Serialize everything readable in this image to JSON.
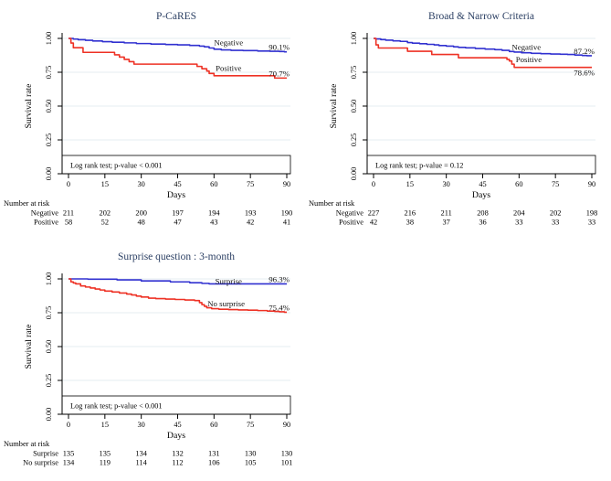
{
  "figure": {
    "background": "#ffffff",
    "axis_color": "#000000",
    "grid_color": "#e6edf2",
    "text_color": "#000000"
  },
  "chart_data": [
    {
      "type": "line",
      "subtype": "kaplan-meier-step",
      "title": "P-CaRES",
      "title_color": "#2b3f63",
      "xlabel": "Days",
      "ylabel": "Survival rate",
      "xlim": [
        0,
        90
      ],
      "ylim": [
        0,
        1
      ],
      "xticks": [
        0,
        15,
        30,
        45,
        60,
        75,
        90
      ],
      "ytick_labels": [
        "0.00",
        "0.25",
        "0.50",
        "0.75",
        "1.00"
      ],
      "ytick_values": [
        0,
        0.25,
        0.5,
        0.75,
        1.0
      ],
      "grid": "horizontal",
      "annotation": "Log rank test; p-value < 0.001",
      "series": [
        {
          "name": "Negative",
          "color": "#3030d0",
          "steps": [
            [
              0,
              1.0
            ],
            [
              2,
              0.995
            ],
            [
              4,
              0.99
            ],
            [
              7,
              0.986
            ],
            [
              10,
              0.981
            ],
            [
              14,
              0.976
            ],
            [
              18,
              0.972
            ],
            [
              23,
              0.967
            ],
            [
              28,
              0.962
            ],
            [
              34,
              0.958
            ],
            [
              40,
              0.955
            ],
            [
              45,
              0.952
            ],
            [
              50,
              0.948
            ],
            [
              54,
              0.943
            ],
            [
              56,
              0.938
            ],
            [
              58,
              0.929
            ],
            [
              60,
              0.92
            ],
            [
              63,
              0.915
            ],
            [
              67,
              0.912
            ],
            [
              72,
              0.91
            ],
            [
              78,
              0.907
            ],
            [
              83,
              0.905
            ],
            [
              87,
              0.903
            ],
            [
              89,
              0.901
            ],
            [
              90,
              0.901
            ]
          ],
          "label_pos": [
            66,
            0.97
          ],
          "end_label": "90.1%",
          "end_label_side": "above"
        },
        {
          "name": "Positive",
          "color": "#ee3124",
          "steps": [
            [
              0,
              1.0
            ],
            [
              1,
              0.966
            ],
            [
              2,
              0.931
            ],
            [
              6,
              0.897
            ],
            [
              19,
              0.879
            ],
            [
              21,
              0.862
            ],
            [
              23,
              0.845
            ],
            [
              25,
              0.828
            ],
            [
              27,
              0.81
            ],
            [
              53,
              0.793
            ],
            [
              55,
              0.776
            ],
            [
              57,
              0.759
            ],
            [
              58,
              0.741
            ],
            [
              60,
              0.724
            ],
            [
              85,
              0.707
            ],
            [
              90,
              0.707
            ]
          ],
          "label_pos": [
            66,
            0.782
          ],
          "end_label": "70.7%",
          "end_label_side": "above"
        }
      ],
      "risk_table": {
        "header": "Number at risk",
        "rows": [
          {
            "label": "Negative",
            "values": [
              211,
              202,
              200,
              197,
              194,
              193,
              190
            ]
          },
          {
            "label": "Positive",
            "values": [
              58,
              52,
              48,
              47,
              43,
              42,
              41
            ]
          }
        ]
      }
    },
    {
      "type": "line",
      "subtype": "kaplan-meier-step",
      "title": "Broad & Narrow Criteria",
      "title_color": "#2b3f63",
      "xlabel": "Days",
      "ylabel": "Survival rate",
      "xlim": [
        0,
        90
      ],
      "ylim": [
        0,
        1
      ],
      "xticks": [
        0,
        15,
        30,
        45,
        60,
        75,
        90
      ],
      "ytick_labels": [
        "0.00",
        "0.25",
        "0.50",
        "0.75",
        "1.00"
      ],
      "ytick_values": [
        0,
        0.25,
        0.5,
        0.75,
        1.0
      ],
      "grid": "horizontal",
      "annotation": "Log rank test; p-value = 0.12",
      "series": [
        {
          "name": "Negative",
          "color": "#3030d0",
          "steps": [
            [
              0,
              1.0
            ],
            [
              1,
              0.996
            ],
            [
              3,
              0.991
            ],
            [
              5,
              0.987
            ],
            [
              8,
              0.982
            ],
            [
              11,
              0.978
            ],
            [
              14,
              0.969
            ],
            [
              16,
              0.965
            ],
            [
              19,
              0.961
            ],
            [
              22,
              0.956
            ],
            [
              25,
              0.952
            ],
            [
              27,
              0.947
            ],
            [
              30,
              0.943
            ],
            [
              33,
              0.938
            ],
            [
              35,
              0.934
            ],
            [
              38,
              0.93
            ],
            [
              42,
              0.925
            ],
            [
              46,
              0.921
            ],
            [
              50,
              0.917
            ],
            [
              53,
              0.912
            ],
            [
              56,
              0.903
            ],
            [
              58,
              0.899
            ],
            [
              61,
              0.894
            ],
            [
              65,
              0.89
            ],
            [
              69,
              0.887
            ],
            [
              73,
              0.885
            ],
            [
              77,
              0.883
            ],
            [
              80,
              0.881
            ],
            [
              83,
              0.877
            ],
            [
              86,
              0.874
            ],
            [
              88,
              0.872
            ],
            [
              90,
              0.872
            ]
          ],
          "label_pos": [
            63,
            0.935
          ],
          "end_label": "87.2%",
          "end_label_side": "above"
        },
        {
          "name": "Positive",
          "color": "#ee3124",
          "steps": [
            [
              0,
              1.0
            ],
            [
              1,
              0.952
            ],
            [
              2,
              0.929
            ],
            [
              14,
              0.905
            ],
            [
              24,
              0.881
            ],
            [
              35,
              0.857
            ],
            [
              55,
              0.845
            ],
            [
              56,
              0.833
            ],
            [
              57,
              0.81
            ],
            [
              58,
              0.786
            ],
            [
              90,
              0.786
            ]
          ],
          "label_pos": [
            64,
            0.843
          ],
          "end_label": "78.6%",
          "end_label_side": "below"
        }
      ],
      "risk_table": {
        "header": "Number at risk",
        "rows": [
          {
            "label": "Negative",
            "values": [
              227,
              216,
              211,
              208,
              204,
              202,
              198
            ]
          },
          {
            "label": "Positive",
            "values": [
              42,
              38,
              37,
              36,
              33,
              33,
              33
            ]
          }
        ]
      }
    },
    {
      "type": "line",
      "subtype": "kaplan-meier-step",
      "title": "Surprise question : 3-month",
      "title_color": "#2b3f63",
      "xlabel": "Days",
      "ylabel": "Survival rate",
      "xlim": [
        0,
        90
      ],
      "ylim": [
        0,
        1
      ],
      "xticks": [
        0,
        15,
        30,
        45,
        60,
        75,
        90
      ],
      "ytick_labels": [
        "0.00",
        "0.25",
        "0.50",
        "0.75",
        "1.00"
      ],
      "ytick_values": [
        0,
        0.25,
        0.5,
        0.75,
        1.0
      ],
      "grid": "horizontal",
      "annotation": "Log rank test; p-value < 0.001",
      "series": [
        {
          "name": "Surprise",
          "color": "#3030d0",
          "steps": [
            [
              0,
              1.0
            ],
            [
              8,
              0.998
            ],
            [
              20,
              0.993
            ],
            [
              30,
              0.985
            ],
            [
              42,
              0.978
            ],
            [
              50,
              0.972
            ],
            [
              55,
              0.967
            ],
            [
              58,
              0.963
            ],
            [
              90,
              0.963
            ]
          ],
          "label_pos": [
            66,
            0.984
          ],
          "end_label": "96.3%",
          "end_label_side": "above"
        },
        {
          "name": "No surprise",
          "color": "#ee3124",
          "steps": [
            [
              0,
              1.0
            ],
            [
              1,
              0.978
            ],
            [
              2,
              0.97
            ],
            [
              3,
              0.963
            ],
            [
              5,
              0.948
            ],
            [
              7,
              0.94
            ],
            [
              9,
              0.933
            ],
            [
              11,
              0.925
            ],
            [
              13,
              0.918
            ],
            [
              15,
              0.91
            ],
            [
              18,
              0.903
            ],
            [
              21,
              0.896
            ],
            [
              24,
              0.888
            ],
            [
              26,
              0.881
            ],
            [
              28,
              0.873
            ],
            [
              30,
              0.866
            ],
            [
              33,
              0.858
            ],
            [
              36,
              0.854
            ],
            [
              40,
              0.851
            ],
            [
              44,
              0.848
            ],
            [
              48,
              0.844
            ],
            [
              52,
              0.84
            ],
            [
              54,
              0.825
            ],
            [
              55,
              0.81
            ],
            [
              56,
              0.798
            ],
            [
              57,
              0.787
            ],
            [
              59,
              0.78
            ],
            [
              62,
              0.776
            ],
            [
              66,
              0.773
            ],
            [
              70,
              0.771
            ],
            [
              74,
              0.769
            ],
            [
              78,
              0.766
            ],
            [
              82,
              0.762
            ],
            [
              85,
              0.76
            ],
            [
              87,
              0.757
            ],
            [
              89,
              0.754
            ],
            [
              90,
              0.754
            ]
          ],
          "label_pos": [
            65,
            0.816
          ],
          "end_label": "75.4%",
          "end_label_side": "above"
        }
      ],
      "risk_table": {
        "header": "Number at risk",
        "rows": [
          {
            "label": "Surprise",
            "values": [
              135,
              135,
              134,
              132,
              131,
              130,
              130
            ]
          },
          {
            "label": "No surprise",
            "values": [
              134,
              119,
              114,
              112,
              106,
              105,
              101
            ]
          }
        ]
      }
    }
  ]
}
